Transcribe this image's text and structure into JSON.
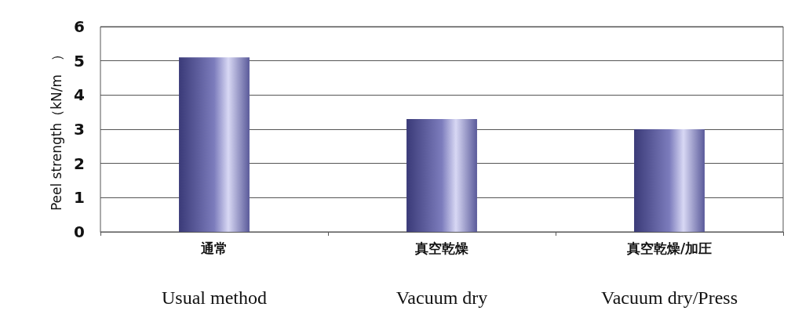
{
  "chart_data": {
    "type": "bar",
    "ylabel": "Peel strength（kN/m　）",
    "categories": [
      "通常\nUsual method",
      "真空乾燥\nVacuum dry",
      "真空乾燥/加圧\nVacuum dry/Press"
    ],
    "values": [
      5.1,
      3.3,
      3.0
    ],
    "color": "#7c7cbc",
    "ylim": [
      0,
      6
    ],
    "yticks": [
      0,
      1,
      2,
      3,
      4,
      5,
      6
    ],
    "grid": "y"
  }
}
